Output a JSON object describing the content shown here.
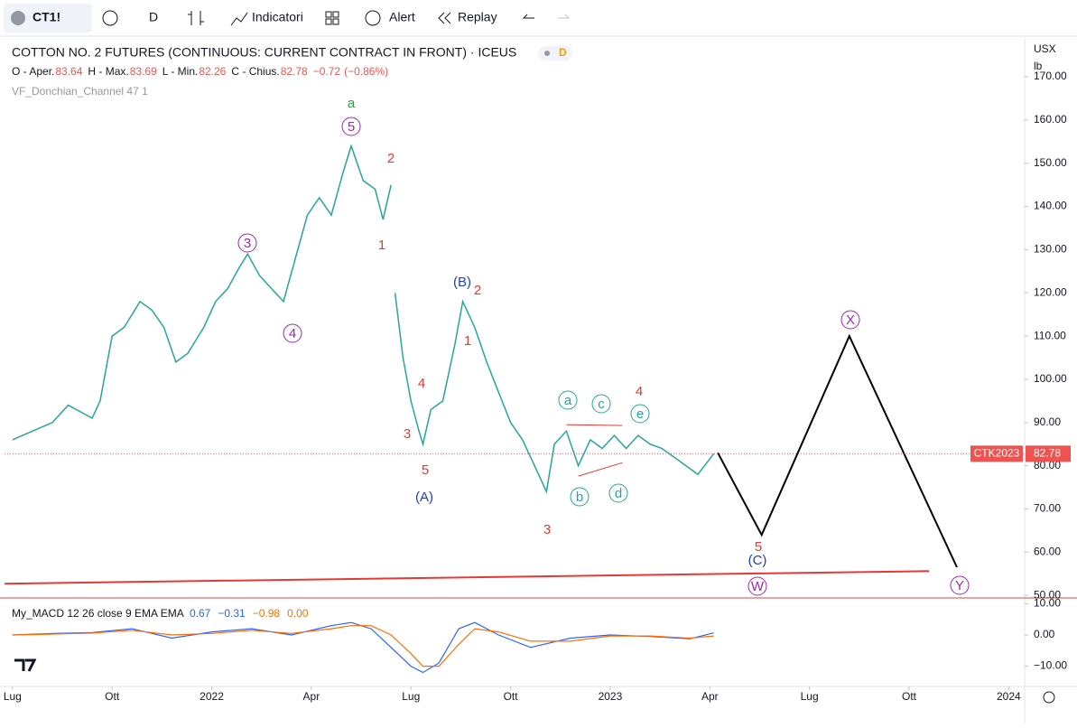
{
  "toolbar": {
    "symbol": "CT1!",
    "interval": "D",
    "indicators": "Indicatori",
    "alert": "Alert",
    "replay": "Replay"
  },
  "chart_data": [
    {
      "type": "line",
      "title": "COTTON NO. 2 FUTURES (CONTINUOUS: CURRENT CONTRACT IN FRONT) · ICEUS",
      "interval_badge": "D",
      "ohlc": [
        {
          "label": "O - Aper.",
          "value": 83.64
        },
        {
          "label": "H - Max.",
          "value": 83.69
        },
        {
          "label": "L - Min.",
          "value": 82.26
        },
        {
          "label": "C - Chius.",
          "value": 82.78
        }
      ],
      "change": {
        "value": -0.72,
        "label": "−0.72"
      },
      "change_pct": {
        "value": -0.86,
        "label": "(−0.86%)"
      },
      "indicator": "VF_Donchian_Channel 47 1",
      "currency": "USX",
      "unit": "lb",
      "x": [
        2021.5,
        2021.55,
        2021.6,
        2021.64,
        2021.7,
        2021.72,
        2021.75,
        2021.78,
        2021.82,
        2021.85,
        2021.88,
        2021.91,
        2021.94,
        2021.98,
        2022.01,
        2022.04,
        2022.07,
        2022.09,
        2022.12,
        2022.15,
        2022.18,
        2022.21,
        2022.24,
        2022.27,
        2022.3,
        2022.33,
        2022.35,
        2022.38,
        2022.41,
        2022.43,
        2022.45,
        2022.455,
        2022.46,
        2022.48,
        2022.5,
        2022.52,
        2022.53,
        2022.55,
        2022.58,
        2022.61,
        2022.63,
        2022.66,
        2022.69,
        2022.72,
        2022.75,
        2022.78,
        2022.81,
        2022.84,
        2022.86,
        2022.89,
        2022.92,
        2022.95,
        2022.98,
        2023.01,
        2023.04,
        2023.07,
        2023.1,
        2023.13,
        2023.16,
        2023.19,
        2023.22,
        2023.26
      ],
      "values": [
        86,
        88,
        90,
        94,
        91,
        95,
        110,
        112,
        118,
        116,
        112,
        104,
        106,
        112,
        118,
        121,
        126,
        129,
        124,
        121,
        118,
        128,
        138,
        142,
        138,
        148,
        154,
        146,
        144,
        137,
        145,
        null,
        120,
        105,
        95,
        88,
        85,
        93,
        95,
        108,
        118,
        112,
        104,
        97,
        90,
        86,
        80,
        74,
        85,
        88,
        80,
        86,
        84,
        87,
        84,
        87,
        85,
        84,
        82,
        80,
        78,
        82.78
      ],
      "color": "#26a69a",
      "last_price": {
        "value": 82.78,
        "label": "82.78",
        "name": "CTK2023"
      },
      "forecast": {
        "x": [
          2023.27,
          2023.38,
          2023.6,
          2023.87
        ],
        "values": [
          83,
          64,
          110,
          56.5
        ]
      },
      "support": {
        "x": [
          2021.48,
          2023.8
        ],
        "values": [
          52.7,
          55.6
        ]
      },
      "triangle_top": {
        "x": [
          2022.89,
          2023.03
        ],
        "values": [
          89.5,
          89.3
        ]
      },
      "triangle_bottom": {
        "x": [
          2022.92,
          2023.03
        ],
        "values": [
          77.6,
          80.7
        ]
      },
      "waves": [
        "a",
        "5",
        "2",
        "1",
        "3",
        "4",
        "(B)",
        "2",
        "1",
        "4",
        "3",
        "5",
        "(A)",
        "3",
        "a",
        "c",
        "4",
        "e",
        "b",
        "d",
        "5",
        "(C)",
        "W",
        "X",
        "Y"
      ],
      "xlim": [
        2021.48,
        2024.04
      ],
      "xticks": [
        {
          "value": 2021.5,
          "label": "Lug"
        },
        {
          "value": 2021.75,
          "label": "Ott"
        },
        2022,
        {
          "value": 2022.25,
          "label": "Apr"
        },
        {
          "value": 2022.5,
          "label": "Lug"
        },
        {
          "value": 2022.75,
          "label": "Ott"
        },
        2023,
        {
          "value": 2023.25,
          "label": "Apr"
        },
        {
          "value": 2023.5,
          "label": "Lug"
        },
        {
          "value": 2023.75,
          "label": "Ott"
        },
        2024
      ],
      "ylim": [
        49.4,
        179
      ],
      "yticks": [
        {
          "value": 170,
          "label": "170.00"
        },
        {
          "value": 160,
          "label": "160.00"
        },
        {
          "value": 150,
          "label": "150.00"
        },
        {
          "value": 140,
          "label": "140.00"
        },
        {
          "value": 130,
          "label": "130.00"
        },
        {
          "value": 120,
          "label": "120.00"
        },
        {
          "value": 110,
          "label": "110.00"
        },
        {
          "value": 100,
          "label": "100.00"
        },
        {
          "value": 90,
          "label": "90.00"
        },
        {
          "value": 80,
          "label": "80.00"
        },
        {
          "value": 70,
          "label": "70.00"
        },
        {
          "value": 60,
          "label": "60.00"
        },
        {
          "value": 50,
          "label": "50.00"
        }
      ]
    },
    {
      "type": "line",
      "title": "My_MACD 12 26 close 9 EMA EMA",
      "legend": [
        {
          "value": 0.67,
          "label": "0.67",
          "color": "#2962ff"
        },
        {
          "value": -0.31,
          "label": "−0.31",
          "color": "#2962ff"
        },
        {
          "value": -0.98,
          "label": "−0.98",
          "color": "#ff6d00"
        },
        {
          "value": 0,
          "label": "0.00",
          "color": "#ff6d00"
        }
      ],
      "x": [
        2021.5,
        2021.6,
        2021.7,
        2021.8,
        2021.9,
        2022.0,
        2022.1,
        2022.2,
        2022.3,
        2022.35,
        2022.4,
        2022.45,
        2022.5,
        2022.53,
        2022.57,
        2022.62,
        2022.66,
        2022.72,
        2022.8,
        2022.9,
        2023.0,
        2023.1,
        2023.2,
        2023.26
      ],
      "lines": [
        {
          "color": "#2962ff",
          "values": [
            0,
            0.5,
            0.8,
            2,
            -1,
            1,
            2,
            0,
            3,
            4,
            2,
            -4,
            -10,
            -12,
            -9,
            2,
            4,
            0,
            -4,
            -1,
            0,
            -0.5,
            -1.2,
            0.67
          ]
        },
        {
          "color": "#ff6d00",
          "values": [
            0,
            0.3,
            0.6,
            1.5,
            0,
            0.5,
            1.5,
            0.5,
            2,
            3,
            3,
            0,
            -6,
            -10,
            -10,
            -3,
            2,
            1,
            -2,
            -2,
            -0.3,
            -0.3,
            -1,
            -0.31
          ]
        }
      ],
      "ylim": [
        -16.5,
        11.3
      ],
      "yticks": [
        {
          "value": 10,
          "label": "10.00"
        },
        {
          "value": 0,
          "label": "0.00"
        },
        {
          "value": -10,
          "label": "−10.00"
        }
      ]
    }
  ]
}
